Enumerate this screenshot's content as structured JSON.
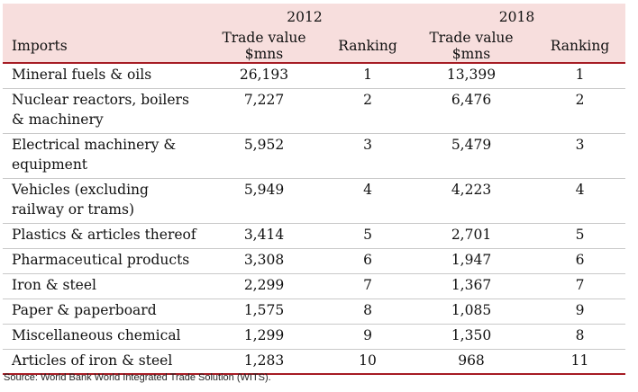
{
  "table": {
    "years": [
      "2012",
      "2018"
    ],
    "columns": [
      "Imports",
      "Trade value $mns",
      "Ranking",
      "Trade value $mns",
      "Ranking"
    ],
    "rows": [
      {
        "item": "Mineral fuels & oils",
        "v2012": "26,193",
        "r2012": "1",
        "v2018": "13,399",
        "r2018": "1"
      },
      {
        "item": "Nuclear reactors, boilers & machinery",
        "v2012": "7,227",
        "r2012": "2",
        "v2018": "6,476",
        "r2018": "2"
      },
      {
        "item": "Electrical machinery & equipment",
        "v2012": "5,952",
        "r2012": "3",
        "v2018": "5,479",
        "r2018": "3"
      },
      {
        "item": "Vehicles (excluding railway or trams)",
        "v2012": "5,949",
        "r2012": "4",
        "v2018": "4,223",
        "r2018": "4"
      },
      {
        "item": "Plastics & articles thereof",
        "v2012": "3,414",
        "r2012": "5",
        "v2018": "2,701",
        "r2018": "5"
      },
      {
        "item": "Pharmaceutical products",
        "v2012": "3,308",
        "r2012": "6",
        "v2018": "1,947",
        "r2018": "6"
      },
      {
        "item": "Iron & steel",
        "v2012": "2,299",
        "r2012": "7",
        "v2018": "1,367",
        "r2018": "7"
      },
      {
        "item": "Paper & paperboard",
        "v2012": "1,575",
        "r2012": "8",
        "v2018": "1,085",
        "r2018": "9"
      },
      {
        "item": "Miscellaneous chemical",
        "v2012": "1,299",
        "r2012": "9",
        "v2018": "1,350",
        "r2018": "8"
      },
      {
        "item": "Articles of iron & steel",
        "v2012": "1,283",
        "r2012": "10",
        "v2018": "968",
        "r2018": "11"
      }
    ]
  },
  "source": "Source: World Bank World Integrated Trade Solution (WITS).",
  "colors": {
    "header_bg": "#f7dedd",
    "rule": "#a61c24",
    "row_rule": "#c9c9c9"
  }
}
